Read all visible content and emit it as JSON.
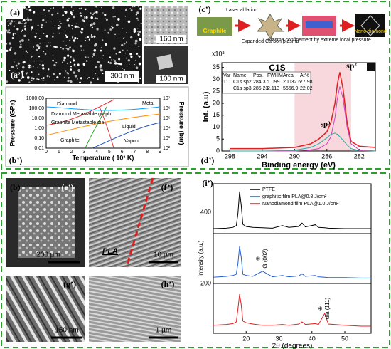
{
  "labels": {
    "a": "(a)",
    "a_prime": "(a’)",
    "b_prime": "(b’)",
    "c_prime": "(c’)",
    "d_prime": "(d’)",
    "b": "(b)",
    "e": "(e’)",
    "f": "(f’)",
    "g": "(g’)",
    "h": "(h’)",
    "i": "(i’)"
  },
  "scale_bars": [
    "300 nm",
    "160 nm",
    "100 nm",
    "200 µm",
    "10 µm",
    "150 nm",
    "1 µm"
  ],
  "pla_label": "PLA",
  "process": {
    "steps": [
      "Graphite",
      "Laser ablation",
      "Expanded Carbon plasma",
      "Plasma confinement by extreme local pressure",
      "Nano diamond"
    ]
  },
  "phase_diagram": {
    "x_label": "Temperature ( 10³ K)",
    "y_label": "Pressure (GPa)",
    "y2_label": "Pressure (bar)",
    "xticks": [
      "0",
      "1",
      "2",
      "3",
      "4",
      "5",
      "6",
      "7",
      "8",
      "9"
    ],
    "yticks": [
      "1000.00",
      "100.00",
      "10.00",
      "1.00",
      "0.10",
      "0.01"
    ],
    "y2ticks": [
      "10⁷",
      "10⁶",
      "10⁵",
      "10⁴",
      "10³",
      "10²"
    ],
    "regions": [
      "Diamond",
      "Diamond Metastable graph.",
      "Graphite Metastable dia.",
      "Graphite",
      "Liquid",
      "Vapour",
      "Metal"
    ]
  },
  "chart_data": [
    {
      "type": "line",
      "title": "C1S",
      "x_label": "Binding energy (eV)",
      "y_label": "Int. (a.u)",
      "multiplier": "x10³",
      "xlim": [
        299,
        280
      ],
      "xticks": [
        298,
        294,
        290,
        286,
        282
      ],
      "ylim": [
        0,
        37
      ],
      "yticks": [
        0,
        5,
        10,
        15,
        20,
        25,
        30,
        35
      ],
      "shade_range": [
        290,
        283
      ],
      "x": [
        298,
        294,
        290,
        288,
        287,
        286,
        285.5,
        285,
        284.7,
        284.4,
        284,
        283.5,
        283,
        282,
        280
      ],
      "series": [
        {
          "name": "envelope",
          "color": "#e02020",
          "values": [
            1,
            1,
            1.5,
            3,
            5,
            8,
            12,
            20,
            28,
            33,
            26,
            12,
            4,
            2,
            1.5
          ]
        },
        {
          "name": "sp2",
          "color": "#d040c0",
          "values": [
            0,
            0,
            0,
            0.5,
            1,
            3,
            6,
            14,
            22,
            27,
            22,
            10,
            3,
            0.5,
            0
          ]
        },
        {
          "name": "sp3",
          "color": "#20b0a0",
          "values": [
            0,
            0,
            0.3,
            1.5,
            3,
            5.5,
            7,
            7.5,
            7,
            6,
            4.5,
            2.5,
            1,
            0.2,
            0
          ]
        }
      ],
      "peak_labels": [
        "sp²",
        "sp³"
      ],
      "table": {
        "header": [
          "Var",
          "Name",
          "Pos.",
          "FWHM",
          "Area",
          "At%"
        ],
        "rows": [
          [
            "11",
            "C1s sp2",
            "284.37",
            "1.099",
            "20032.6",
            "77.98"
          ],
          [
            "",
            "C1s sp3",
            "285.23",
            "2.113",
            "5656.9",
            "22.02"
          ]
        ]
      }
    },
    {
      "type": "line",
      "x_label": "2θ (degrees)",
      "y_label": "Intensity (a.u.)",
      "xlim": [
        10,
        58
      ],
      "xticks": [
        20,
        30,
        40,
        50
      ],
      "y_tick_labels": [
        "400",
        "200"
      ],
      "ylim": [
        0,
        100
      ],
      "x": [
        10,
        14,
        16,
        17,
        17.5,
        18,
        18.5,
        19,
        20,
        22,
        25,
        28,
        31,
        33,
        36,
        37,
        38,
        41,
        42,
        43.9,
        45,
        50,
        55,
        58
      ],
      "series": [
        {
          "name": "PTFE",
          "color": "#000000",
          "values": [
            5,
            6,
            8,
            12,
            40,
            92,
            60,
            15,
            10,
            8,
            7,
            6,
            12,
            8,
            10,
            18,
            9,
            14,
            8,
            7,
            6,
            5,
            5,
            5
          ]
        },
        {
          "name": "graphitic film PLA@0.8 J/cm²",
          "color": "#1f5fd0",
          "values": [
            8,
            10,
            12,
            15,
            40,
            80,
            55,
            15,
            12,
            10,
            22,
            9,
            12,
            9,
            11,
            16,
            10,
            12,
            9,
            8,
            7,
            7,
            6,
            6
          ]
        },
        {
          "name": "Nanodiamond film PLA@1.0 J/cm²",
          "color": "#e02020",
          "values": [
            12,
            14,
            16,
            20,
            50,
            85,
            60,
            22,
            18,
            15,
            12,
            12,
            14,
            12,
            15,
            20,
            14,
            16,
            14,
            40,
            15,
            12,
            10,
            10
          ]
        }
      ],
      "annotations": [
        "G (002)",
        "dia (111)"
      ],
      "annotation_x": [
        25,
        43.9
      ],
      "marker_symbol": "*"
    }
  ]
}
